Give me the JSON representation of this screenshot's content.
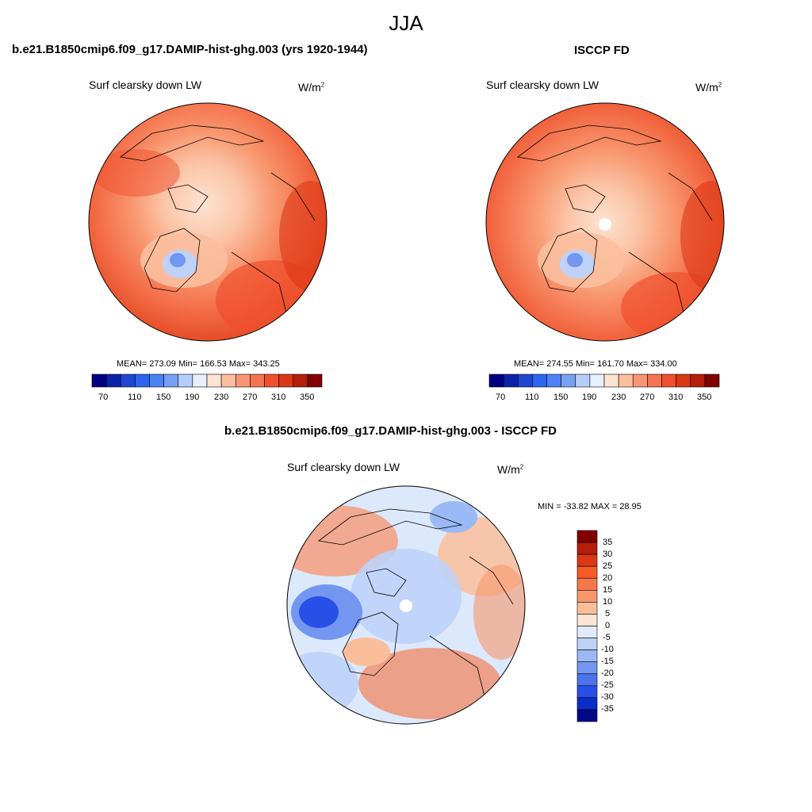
{
  "figure": {
    "title": "JJA"
  },
  "panels": [
    {
      "title": "b.e21.B1850cmip6.f09_g17.DAMIP-hist-ghg.003 (yrs 1920-1944)",
      "variable": "Surf clearsky down LW",
      "units": "W/m",
      "units_sup": "2",
      "stats": "MEAN= 273.09  Min= 166.53  Max= 343.25"
    },
    {
      "title": "ISCCP FD",
      "variable": "Surf clearsky down LW",
      "units": "W/m",
      "units_sup": "2",
      "stats": "MEAN= 274.55  Min= 161.70  Max= 334.00"
    },
    {
      "title": "b.e21.B1850cmip6.f09_g17.DAMIP-hist-ghg.003 - ISCCP FD",
      "variable": "Surf clearsky down LW",
      "units": "W/m",
      "units_sup": "2",
      "stats": "MIN = -33.82 MAX =  28.95"
    }
  ],
  "abs_colorbar": {
    "colors": [
      "#000080",
      "#0a23a8",
      "#1e46d2",
      "#2d64f0",
      "#4b82f5",
      "#78a0f5",
      "#b4cdfa",
      "#e6f0ff",
      "#fde3d3",
      "#fbbf9e",
      "#f89674",
      "#f5734f",
      "#f0502d",
      "#dc3714",
      "#b41e0a",
      "#820000"
    ],
    "labels": [
      "70",
      "110",
      "150",
      "190",
      "230",
      "270",
      "310",
      "350"
    ]
  },
  "diff_colorbar": {
    "colors": [
      "#820000",
      "#b41e0a",
      "#dc3714",
      "#f55a28",
      "#f5784b",
      "#f8966e",
      "#fbbe9b",
      "#fde3d3",
      "#e1ebfa",
      "#bed2f8",
      "#9bb9f5",
      "#7396f0",
      "#4b73eb",
      "#2850e6",
      "#0a2dc8",
      "#000a87"
    ],
    "labels": [
      "35",
      "30",
      "25",
      "20",
      "15",
      "10",
      "5",
      "0",
      "-5",
      "-10",
      "-15",
      "-20",
      "-25",
      "-30",
      "-35"
    ]
  }
}
